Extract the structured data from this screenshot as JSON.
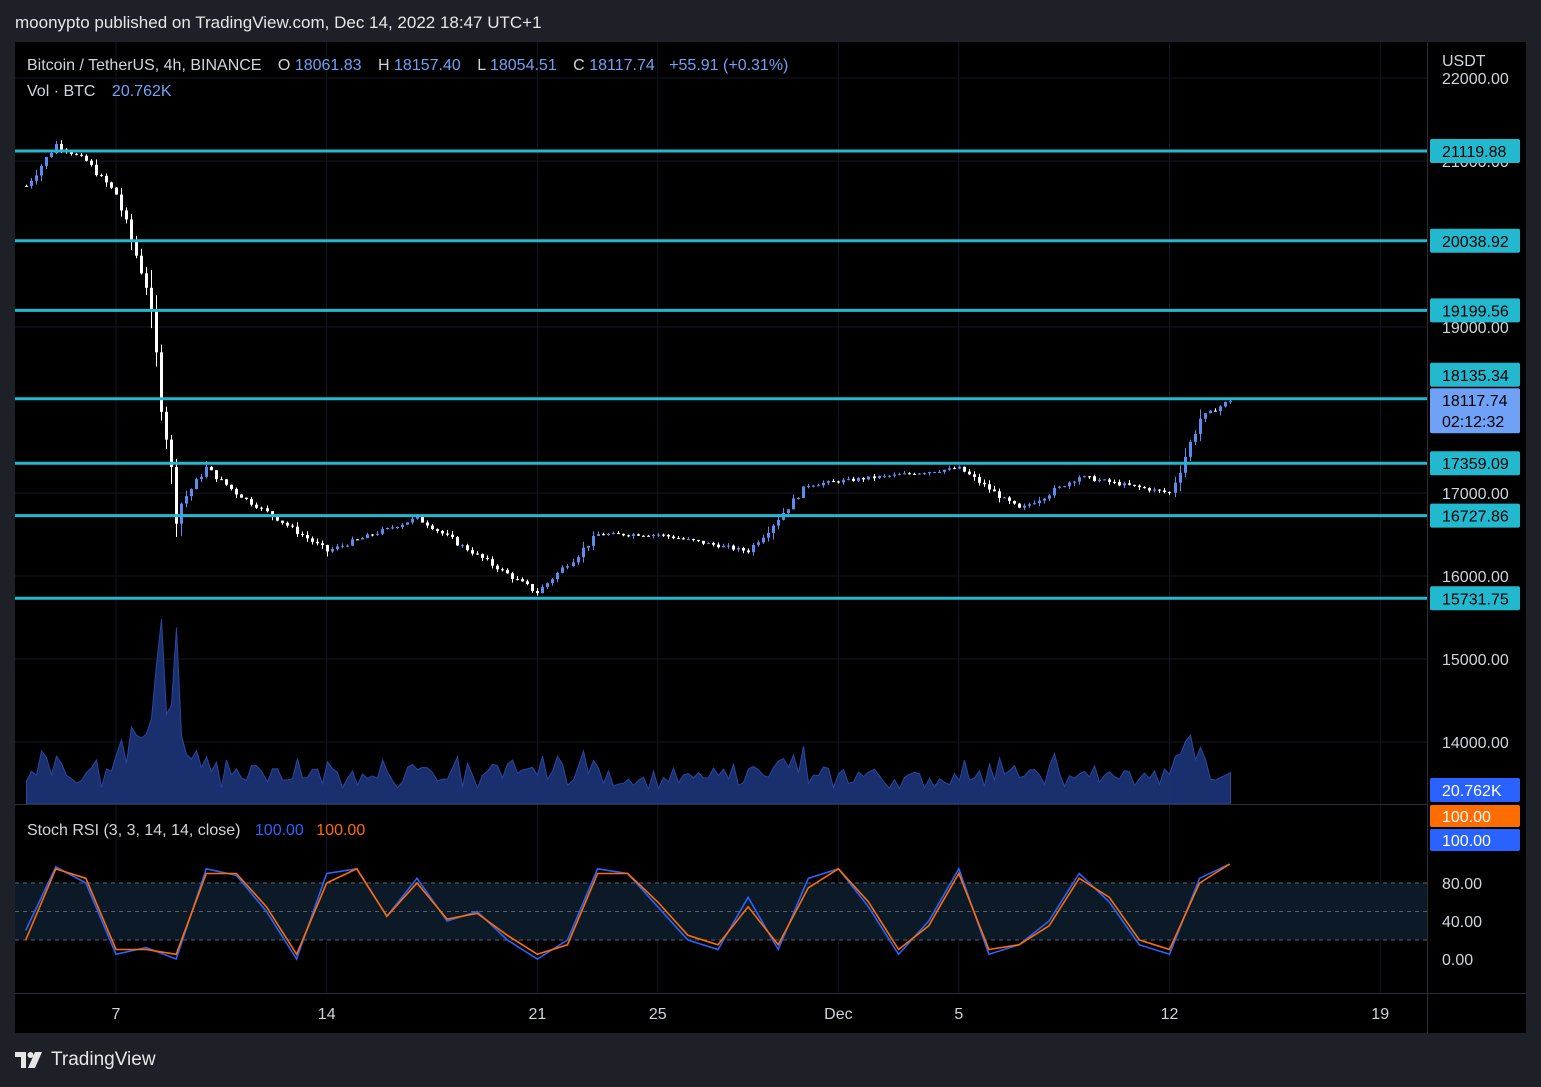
{
  "publisher": "moonypto published on TradingView.com, Dec 14, 2022 18:47 UTC+1",
  "brand": "TradingView",
  "legend": {
    "symbol": "Bitcoin / TetherUS, 4h, BINANCE",
    "o_label": "O",
    "o": "18061.83",
    "h_label": "H",
    "h": "18157.40",
    "l_label": "L",
    "l": "18054.51",
    "c_label": "C",
    "c": "18117.74",
    "change": "+55.91 (+0.31%)",
    "vol_label": "Vol · BTC",
    "vol": "20.762K"
  },
  "currency": "USDT",
  "colors": {
    "background": "#000000",
    "candle_up": "#5b8cf0",
    "candle_down": "#ffffff",
    "level_line": "#22b9cf",
    "volume_fill": "#1d3479",
    "stoch_k": "#2962ff",
    "stoch_d": "#ff6d00",
    "last_price_label": "#6fa2f6"
  },
  "price_ticks": [
    "22000.00",
    "21000.00",
    "19000.00",
    "17000.00",
    "16000.00",
    "15000.00",
    "14000.00"
  ],
  "level_labels": [
    "21119.88",
    "20038.92",
    "19199.56",
    "18135.34",
    "17359.09",
    "16727.86",
    "15731.75"
  ],
  "last_price": {
    "value": "18117.74",
    "countdown": "02:12:32"
  },
  "volume_badge": "20.762K",
  "stoch": {
    "title": "Stoch RSI (3, 3, 14, 14, close)",
    "k_value": "100.00",
    "d_value": "100.00",
    "ticks": [
      "80.00",
      "40.00",
      "0.00"
    ]
  },
  "time_ticks": [
    "7",
    "14",
    "21",
    "25",
    "Dec",
    "5",
    "12",
    "19"
  ],
  "chart_data": [
    {
      "type": "candlestick",
      "symbol": "Bitcoin / TetherUS",
      "interval": "4h",
      "exchange": "BINANCE",
      "y_unit": "USDT",
      "ylim": [
        13300,
        22100
      ],
      "x_range": [
        "Nov 4, 2022",
        "Dec 14, 2022"
      ],
      "grid": true,
      "price_path": [
        {
          "date": "Nov 4",
          "close": 20700
        },
        {
          "date": "Nov 5",
          "close": 21200
        },
        {
          "date": "Nov 6",
          "close": 21000
        },
        {
          "date": "Nov 7",
          "close": 20600
        },
        {
          "date": "Nov 8",
          "close": 19500
        },
        {
          "date": "Nov 9",
          "close": 16800
        },
        {
          "date": "Nov 10",
          "close": 17300
        },
        {
          "date": "Nov 11",
          "close": 17000
        },
        {
          "date": "Nov 14",
          "close": 16300
        },
        {
          "date": "Nov 17",
          "close": 16700
        },
        {
          "date": "Nov 21",
          "close": 15800
        },
        {
          "date": "Nov 23",
          "close": 16500
        },
        {
          "date": "Nov 25",
          "close": 16500
        },
        {
          "date": "Nov 28",
          "close": 16300
        },
        {
          "date": "Nov 30",
          "close": 17100
        },
        {
          "date": "Dec 5",
          "close": 17300
        },
        {
          "date": "Dec 7",
          "close": 16800
        },
        {
          "date": "Dec 9",
          "close": 17200
        },
        {
          "date": "Dec 12",
          "close": 17000
        },
        {
          "date": "Dec 13",
          "close": 17900
        },
        {
          "date": "Dec 14",
          "close": 18117.74
        }
      ],
      "horizontal_levels": [
        21119.88,
        20038.92,
        19199.56,
        18135.34,
        17359.09,
        16727.86,
        15731.75
      ],
      "last": {
        "open": 18061.83,
        "high": 18157.4,
        "low": 18054.51,
        "close": 18117.74,
        "change": 55.91,
        "change_pct": 0.31
      }
    },
    {
      "type": "area",
      "name": "Vol · BTC",
      "last_value": "20.762K"
    },
    {
      "type": "line",
      "title": "Stoch RSI (3, 3, 14, 14, close)",
      "ylim": [
        0,
        100
      ],
      "bands": [
        80,
        50,
        20
      ],
      "series": [
        {
          "name": "K",
          "points": [
            {
              "date": "Nov 4",
              "value": 30
            },
            {
              "date": "Nov 5",
              "value": 97
            },
            {
              "date": "Nov 6",
              "value": 80
            },
            {
              "date": "Nov 7",
              "value": 5
            },
            {
              "date": "Nov 8",
              "value": 12
            },
            {
              "date": "Nov 9",
              "value": 0
            },
            {
              "date": "Nov 10",
              "value": 95
            },
            {
              "date": "Nov 11",
              "value": 88
            },
            {
              "date": "Nov 12",
              "value": 50
            },
            {
              "date": "Nov 13",
              "value": 0
            },
            {
              "date": "Nov 14",
              "value": 90
            },
            {
              "date": "Nov 15",
              "value": 95
            },
            {
              "date": "Nov 16",
              "value": 45
            },
            {
              "date": "Nov 17",
              "value": 85
            },
            {
              "date": "Nov 18",
              "value": 40
            },
            {
              "date": "Nov 19",
              "value": 50
            },
            {
              "date": "Nov 20",
              "value": 20
            },
            {
              "date": "Nov 21",
              "value": 0
            },
            {
              "date": "Nov 22",
              "value": 20
            },
            {
              "date": "Nov 23",
              "value": 95
            },
            {
              "date": "Nov 24",
              "value": 90
            },
            {
              "date": "Nov 25",
              "value": 55
            },
            {
              "date": "Nov 26",
              "value": 20
            },
            {
              "date": "Nov 27",
              "value": 10
            },
            {
              "date": "Nov 28",
              "value": 65
            },
            {
              "date": "Nov 29",
              "value": 10
            },
            {
              "date": "Nov 30",
              "value": 85
            },
            {
              "date": "Dec 1",
              "value": 95
            },
            {
              "date": "Dec 2",
              "value": 55
            },
            {
              "date": "Dec 3",
              "value": 5
            },
            {
              "date": "Dec 4",
              "value": 40
            },
            {
              "date": "Dec 5",
              "value": 95
            },
            {
              "date": "Dec 6",
              "value": 5
            },
            {
              "date": "Dec 7",
              "value": 15
            },
            {
              "date": "Dec 8",
              "value": 40
            },
            {
              "date": "Dec 9",
              "value": 90
            },
            {
              "date": "Dec 10",
              "value": 60
            },
            {
              "date": "Dec 11",
              "value": 15
            },
            {
              "date": "Dec 12",
              "value": 5
            },
            {
              "date": "Dec 13",
              "value": 85
            },
            {
              "date": "Dec 14",
              "value": 100
            }
          ]
        },
        {
          "name": "D",
          "points": [
            {
              "date": "Nov 4",
              "value": 20
            },
            {
              "date": "Nov 5",
              "value": 95
            },
            {
              "date": "Nov 6",
              "value": 85
            },
            {
              "date": "Nov 7",
              "value": 10
            },
            {
              "date": "Nov 8",
              "value": 10
            },
            {
              "date": "Nov 9",
              "value": 5
            },
            {
              "date": "Nov 10",
              "value": 90
            },
            {
              "date": "Nov 11",
              "value": 90
            },
            {
              "date": "Nov 12",
              "value": 55
            },
            {
              "date": "Nov 13",
              "value": 5
            },
            {
              "date": "Nov 14",
              "value": 80
            },
            {
              "date": "Nov 15",
              "value": 95
            },
            {
              "date": "Nov 16",
              "value": 45
            },
            {
              "date": "Nov 17",
              "value": 80
            },
            {
              "date": "Nov 18",
              "value": 42
            },
            {
              "date": "Nov 19",
              "value": 48
            },
            {
              "date": "Nov 20",
              "value": 25
            },
            {
              "date": "Nov 21",
              "value": 5
            },
            {
              "date": "Nov 22",
              "value": 15
            },
            {
              "date": "Nov 23",
              "value": 90
            },
            {
              "date": "Nov 24",
              "value": 90
            },
            {
              "date": "Nov 25",
              "value": 60
            },
            {
              "date": "Nov 26",
              "value": 25
            },
            {
              "date": "Nov 27",
              "value": 15
            },
            {
              "date": "Nov 28",
              "value": 55
            },
            {
              "date": "Nov 29",
              "value": 15
            },
            {
              "date": "Nov 30",
              "value": 75
            },
            {
              "date": "Dec 1",
              "value": 95
            },
            {
              "date": "Dec 2",
              "value": 60
            },
            {
              "date": "Dec 3",
              "value": 10
            },
            {
              "date": "Dec 4",
              "value": 35
            },
            {
              "date": "Dec 5",
              "value": 90
            },
            {
              "date": "Dec 6",
              "value": 10
            },
            {
              "date": "Dec 7",
              "value": 15
            },
            {
              "date": "Dec 8",
              "value": 35
            },
            {
              "date": "Dec 9",
              "value": 85
            },
            {
              "date": "Dec 10",
              "value": 65
            },
            {
              "date": "Dec 11",
              "value": 20
            },
            {
              "date": "Dec 12",
              "value": 10
            },
            {
              "date": "Dec 13",
              "value": 80
            },
            {
              "date": "Dec 14",
              "value": 100
            }
          ]
        }
      ]
    }
  ]
}
